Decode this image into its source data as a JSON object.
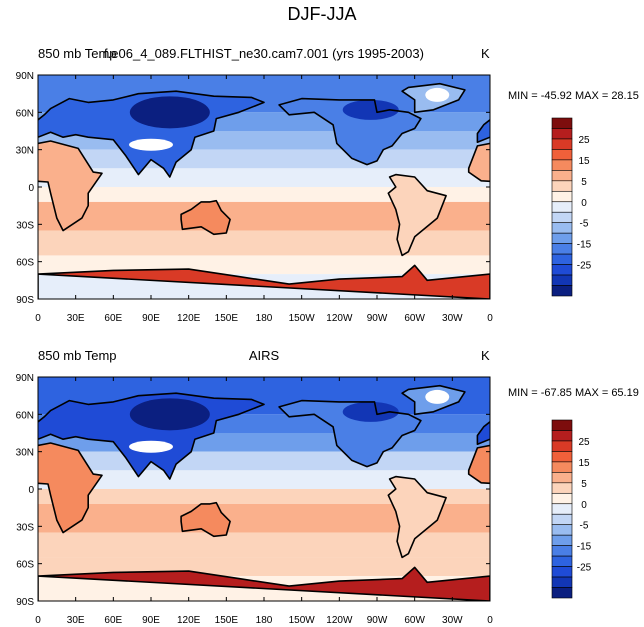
{
  "page": {
    "title": "DJF-JJA"
  },
  "panels": [
    {
      "left_label": "850 mb Temp",
      "center_label": "f.e06_4_089.FLTHIST_ne30.cam7.001 (yrs 1995-2003)",
      "units": "K",
      "minmax": "MIN = -45.92 MAX =  28.15"
    },
    {
      "left_label": "850 mb Temp",
      "center_label": "AIRS",
      "units": "K",
      "minmax": "MIN = -67.85 MAX =  65.19"
    }
  ],
  "map_axes": {
    "lat_ticks": [
      "90N",
      "60N",
      "30N",
      "0",
      "30S",
      "60S",
      "90S"
    ],
    "lon_ticks": [
      "0",
      "30E",
      "60E",
      "90E",
      "120E",
      "150E",
      "180",
      "150W",
      "120W",
      "90W",
      "60W",
      "30W",
      "0"
    ]
  },
  "colorbar": {
    "labels": [
      "25",
      "15",
      "5",
      "0",
      "-5",
      "-15",
      "-25"
    ],
    "colors": [
      "#7d0d0d",
      "#b51e1e",
      "#d93a26",
      "#f0603a",
      "#f58a5e",
      "#fab08c",
      "#fcd4bb",
      "#fff2e6",
      "#e6eefa",
      "#c2d6f5",
      "#99bcf0",
      "#6e9eeb",
      "#4a7fe6",
      "#2e63e0",
      "#1f4bd6",
      "#1236b5",
      "#0b1f80"
    ]
  },
  "colors": {
    "land_outline": "#000000",
    "missing": "#ffffff"
  }
}
